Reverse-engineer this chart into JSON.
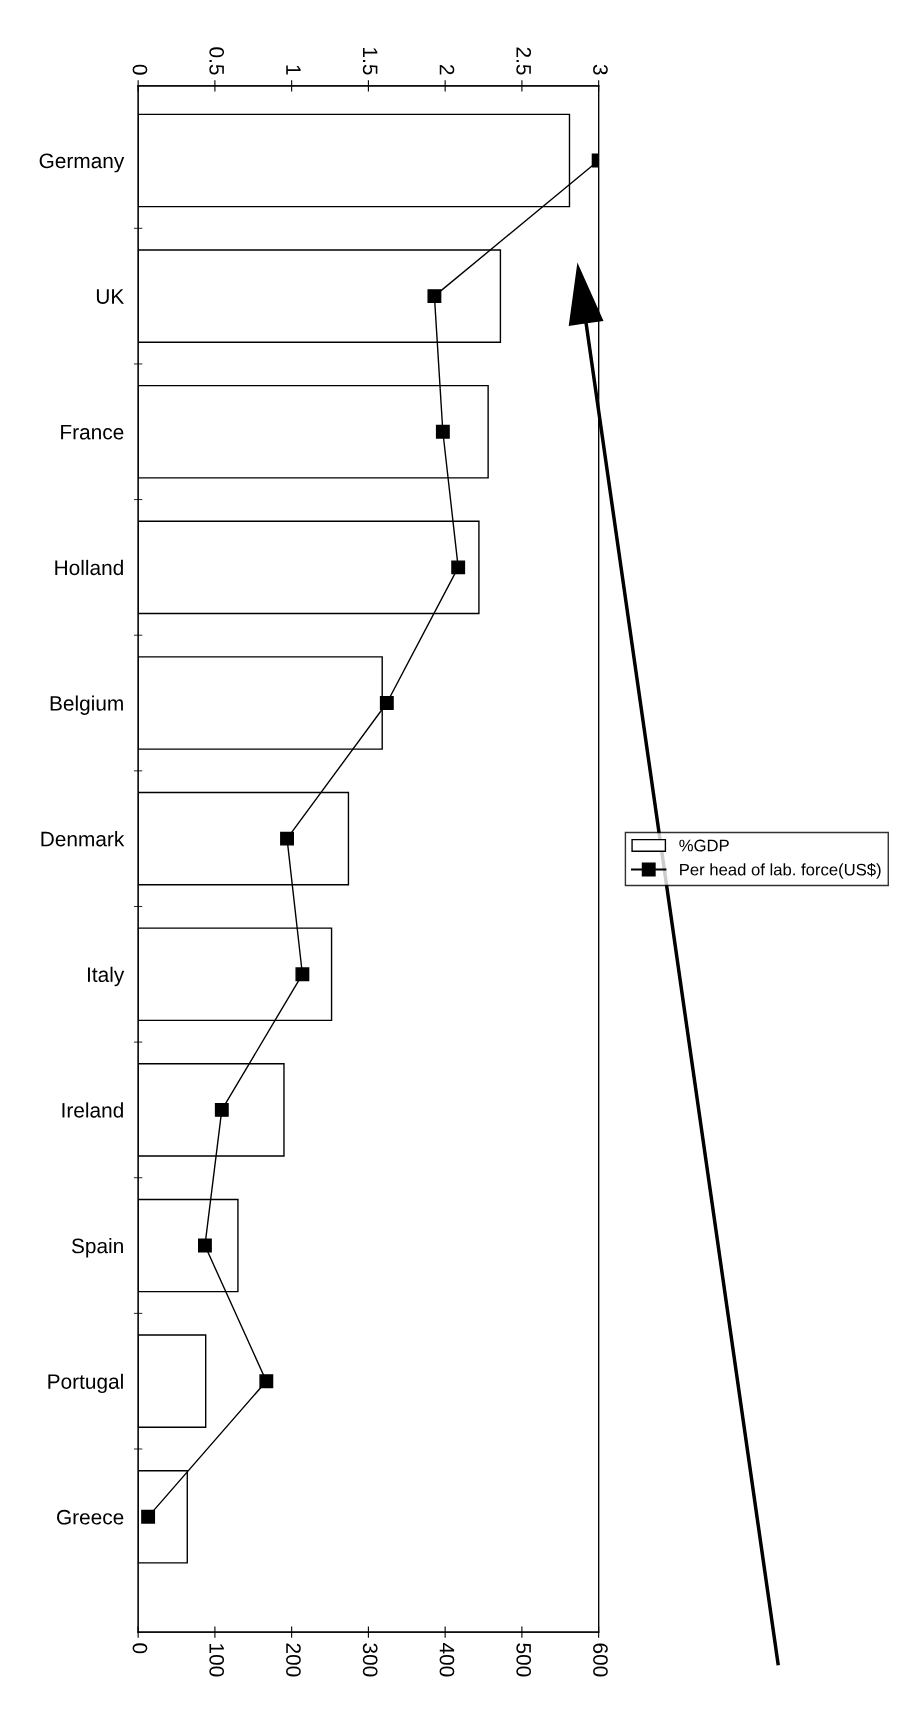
{
  "chart_data": {
    "type": "bar",
    "orientation": "horizontal",
    "categories": [
      "Germany",
      "UK",
      "France",
      "Holland",
      "Belgium",
      "Denmark",
      "Italy",
      "Ireland",
      "Spain",
      "Portugal",
      "Greece"
    ],
    "series": [
      {
        "name": "%GDP",
        "type": "bar",
        "axis": "x2",
        "color": "#ffffff",
        "values": [
          2.81,
          2.36,
          2.28,
          2.22,
          1.59,
          1.37,
          1.26,
          0.95,
          0.65,
          0.44,
          0.32
        ]
      },
      {
        "name": "Per head of lab. force(US$)",
        "type": "line",
        "color": "#000000",
        "marker": "square",
        "values": [
          600,
          386,
          397,
          417,
          324,
          194,
          214,
          109,
          87,
          167,
          13
        ]
      }
    ],
    "x2lim": [
      0,
      3
    ],
    "x2ticks": [
      0,
      0.5,
      1,
      1.5,
      2,
      2.5,
      3
    ],
    "xlim": [
      0,
      600
    ],
    "xticks": [
      0,
      100,
      200,
      300,
      400,
      500,
      600
    ],
    "legend": "right",
    "grid": false
  }
}
